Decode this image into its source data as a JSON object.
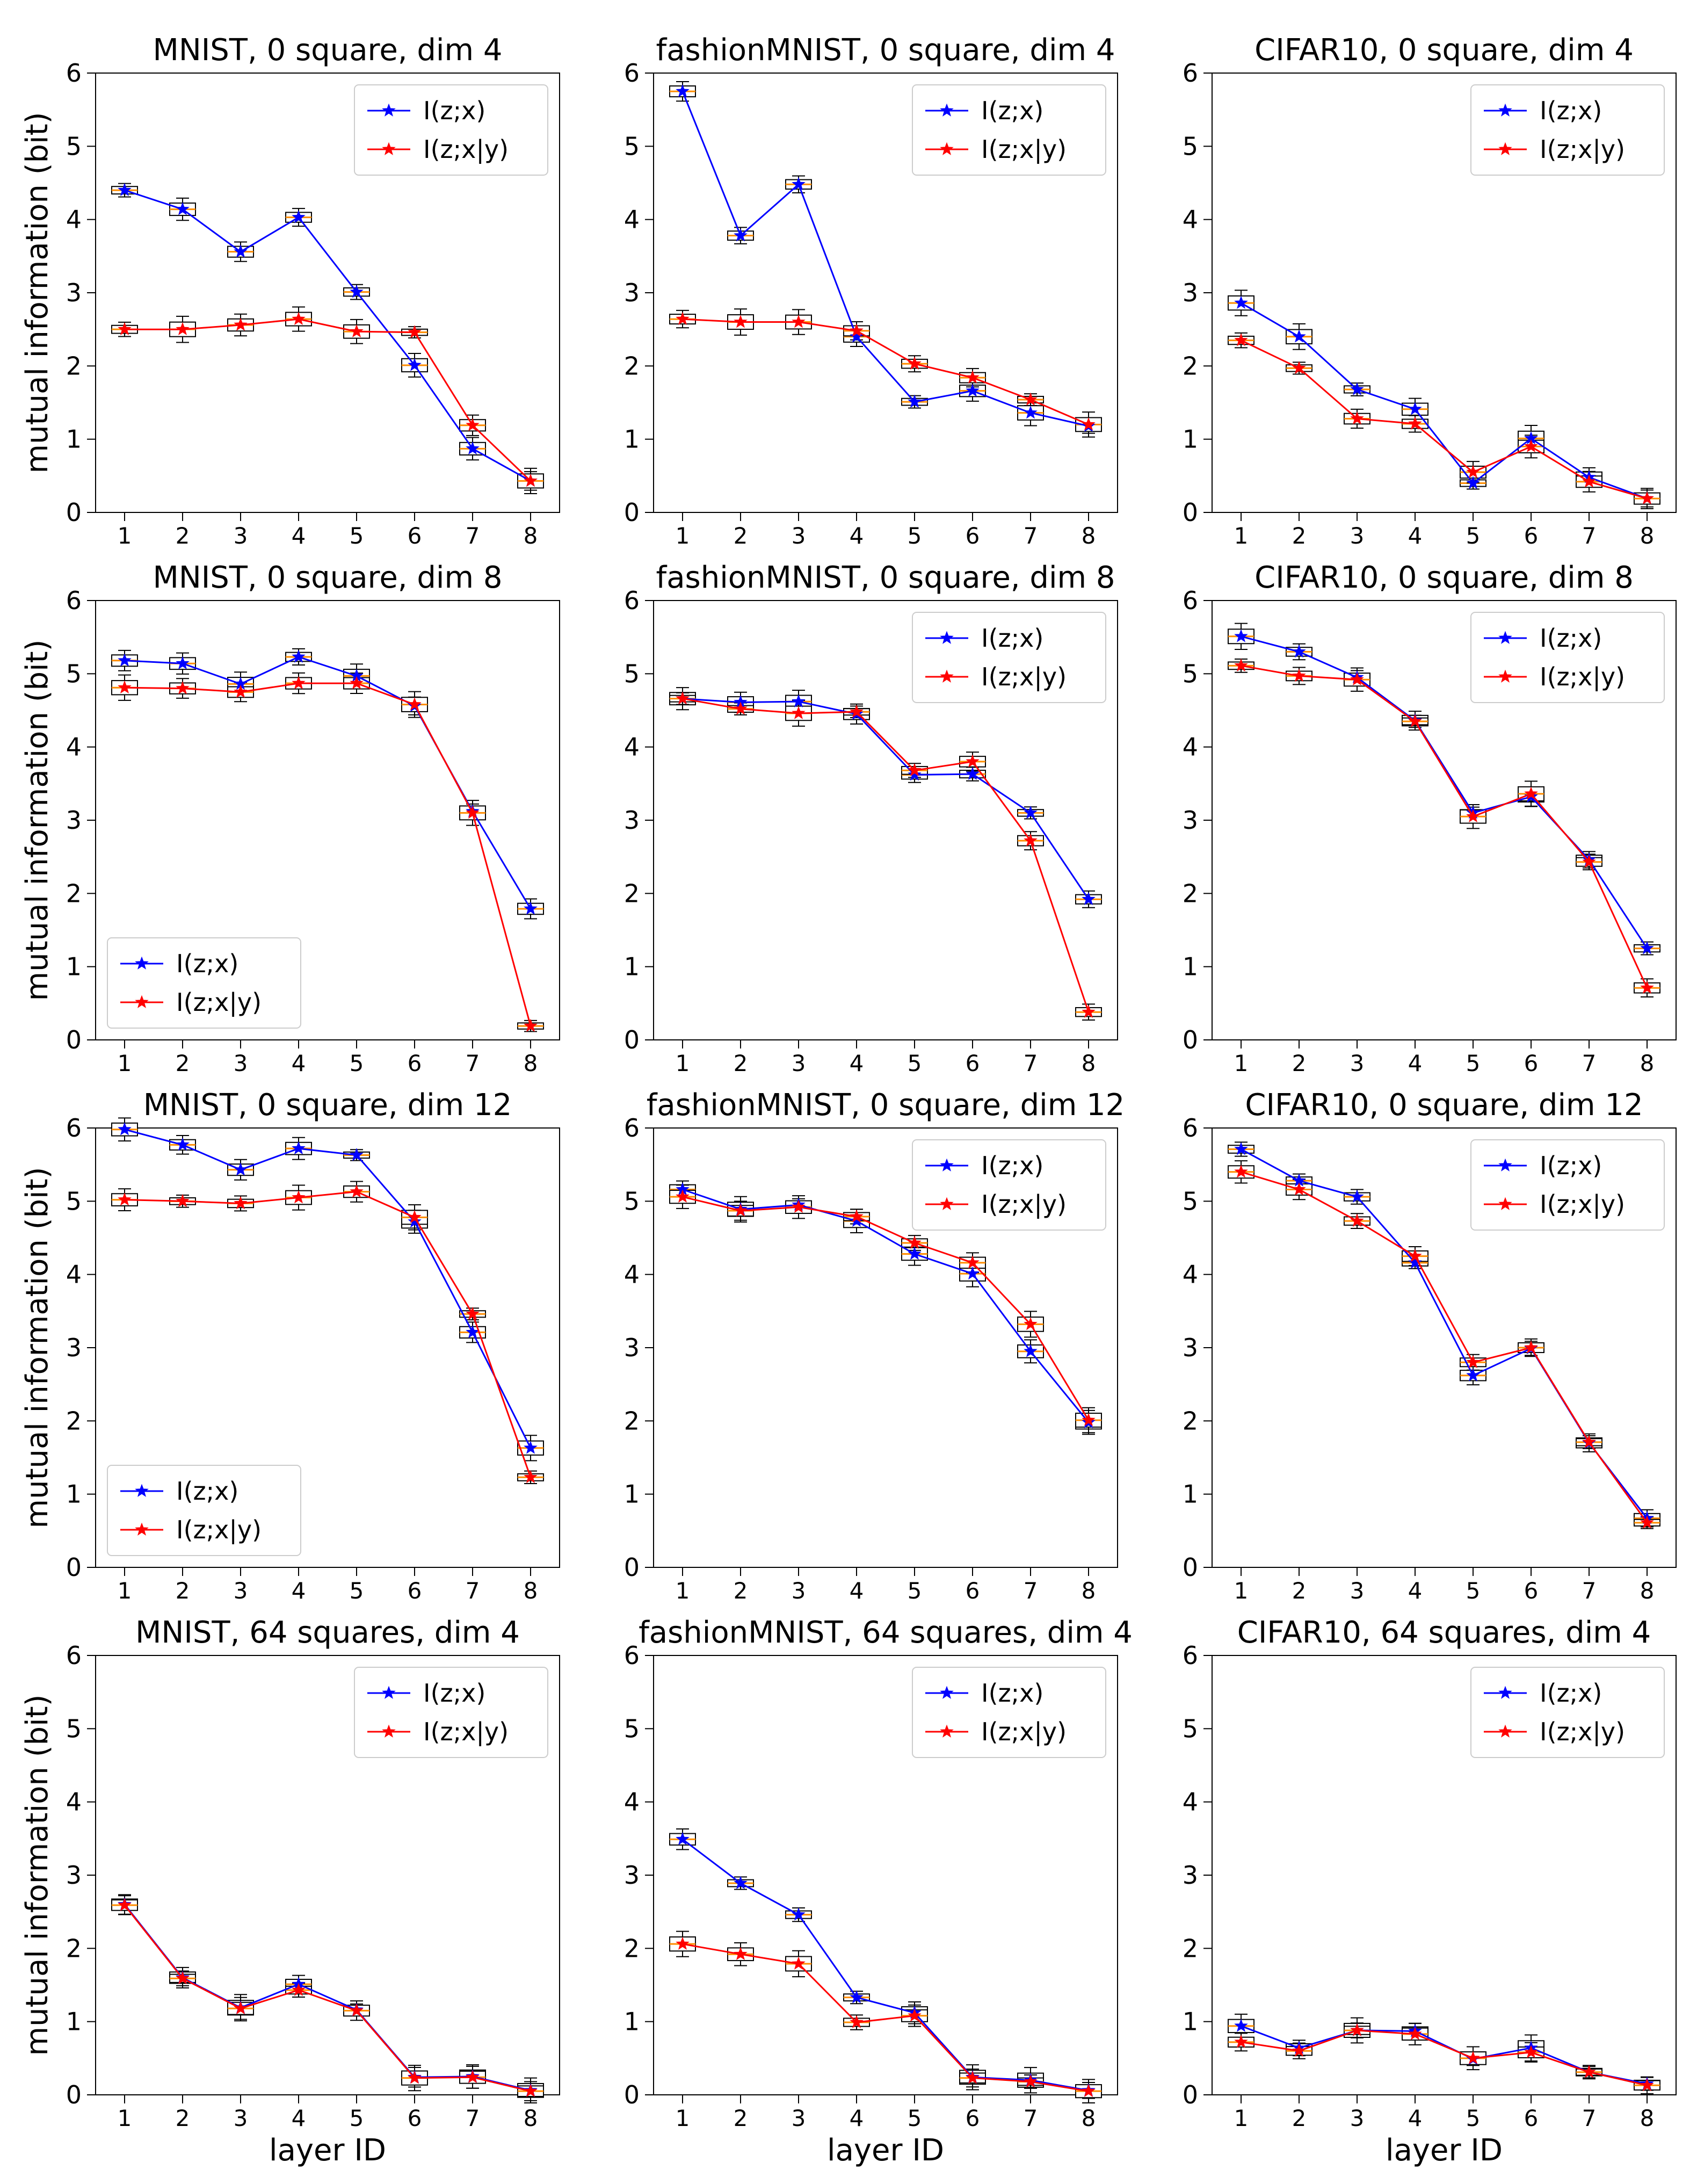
{
  "figure": {
    "ylabel": "mutual information (bit)",
    "xlabel": "layer ID",
    "series_names": [
      "I(z;x)",
      "I(z;x|y)"
    ],
    "series_colors": [
      "#0000ff",
      "#ff0000"
    ]
  },
  "chart_data": [
    {
      "type": "line",
      "title": "MNIST, 0 square, dim 4",
      "legend": "top-right",
      "categories": [
        "1",
        "2",
        "3",
        "4",
        "5",
        "6",
        "7",
        "8"
      ],
      "ylim": [
        0,
        6
      ],
      "yticks": [
        0,
        1,
        2,
        3,
        4,
        5,
        6
      ],
      "series": [
        {
          "name": "I(z;x)",
          "values": [
            4.4,
            4.14,
            3.56,
            4.03,
            3.01,
            2.01,
            0.87,
            0.43
          ]
        },
        {
          "name": "I(z;x|y)",
          "values": [
            2.5,
            2.5,
            2.56,
            2.64,
            2.47,
            2.46,
            1.19,
            0.43
          ]
        }
      ]
    },
    {
      "type": "line",
      "title": "fashionMNIST, 0 square, dim 4",
      "legend": "top-right",
      "categories": [
        "1",
        "2",
        "3",
        "4",
        "5",
        "6",
        "7",
        "8"
      ],
      "ylim": [
        0,
        6
      ],
      "yticks": [
        0,
        1,
        2,
        3,
        4,
        5,
        6
      ],
      "series": [
        {
          "name": "I(z;x)",
          "values": [
            5.75,
            3.78,
            4.48,
            2.4,
            1.51,
            1.66,
            1.36,
            1.18
          ]
        },
        {
          "name": "I(z;x|y)",
          "values": [
            2.64,
            2.6,
            2.6,
            2.48,
            2.03,
            1.84,
            1.54,
            1.2
          ]
        }
      ]
    },
    {
      "type": "line",
      "title": "CIFAR10, 0 square, dim 4",
      "legend": "top-right",
      "categories": [
        "1",
        "2",
        "3",
        "4",
        "5",
        "6",
        "7",
        "8"
      ],
      "ylim": [
        0,
        6
      ],
      "yticks": [
        0,
        1,
        2,
        3,
        4,
        5,
        6
      ],
      "series": [
        {
          "name": "I(z;x)",
          "values": [
            2.86,
            2.4,
            1.68,
            1.41,
            0.4,
            1.01,
            0.48,
            0.19
          ]
        },
        {
          "name": "I(z;x|y)",
          "values": [
            2.35,
            1.97,
            1.28,
            1.21,
            0.55,
            0.9,
            0.42,
            0.19
          ]
        }
      ]
    },
    {
      "type": "line",
      "title": "MNIST, 0 square, dim 8",
      "legend": "bottom-left",
      "categories": [
        "1",
        "2",
        "3",
        "4",
        "5",
        "6",
        "7",
        "8"
      ],
      "ylim": [
        0,
        6
      ],
      "yticks": [
        0,
        1,
        2,
        3,
        4,
        5,
        6
      ],
      "series": [
        {
          "name": "I(z;x)",
          "values": [
            5.18,
            5.14,
            4.86,
            5.23,
            4.97,
            4.56,
            3.12,
            1.79
          ]
        },
        {
          "name": "I(z;x|y)",
          "values": [
            4.81,
            4.8,
            4.75,
            4.87,
            4.87,
            4.58,
            3.1,
            0.19
          ]
        }
      ]
    },
    {
      "type": "line",
      "title": "fashionMNIST, 0 square, dim 8",
      "legend": "top-right",
      "categories": [
        "1",
        "2",
        "3",
        "4",
        "5",
        "6",
        "7",
        "8"
      ],
      "ylim": [
        0,
        6
      ],
      "yticks": [
        0,
        1,
        2,
        3,
        4,
        5,
        6
      ],
      "series": [
        {
          "name": "I(z;x)",
          "values": [
            4.66,
            4.61,
            4.62,
            4.45,
            3.62,
            3.63,
            3.1,
            1.92
          ]
        },
        {
          "name": "I(z;x|y)",
          "values": [
            4.66,
            4.52,
            4.46,
            4.48,
            3.68,
            3.8,
            2.72,
            0.38
          ]
        }
      ]
    },
    {
      "type": "line",
      "title": "CIFAR10, 0 square, dim 8",
      "legend": "top-right",
      "categories": [
        "1",
        "2",
        "3",
        "4",
        "5",
        "6",
        "7",
        "8"
      ],
      "ylim": [
        0,
        6
      ],
      "yticks": [
        0,
        1,
        2,
        3,
        4,
        5,
        6
      ],
      "series": [
        {
          "name": "I(z;x)",
          "values": [
            5.51,
            5.3,
            4.95,
            4.36,
            3.1,
            3.32,
            2.46,
            1.25
          ]
        },
        {
          "name": "I(z;x|y)",
          "values": [
            5.11,
            4.97,
            4.92,
            4.35,
            3.05,
            3.36,
            2.43,
            0.71
          ]
        }
      ]
    },
    {
      "type": "line",
      "title": "MNIST, 0 square, dim 12",
      "legend": "bottom-left",
      "categories": [
        "1",
        "2",
        "3",
        "4",
        "5",
        "6",
        "7",
        "8"
      ],
      "ylim": [
        0,
        6
      ],
      "yticks": [
        0,
        1,
        2,
        3,
        4,
        5,
        6
      ],
      "series": [
        {
          "name": "I(z;x)",
          "values": [
            5.98,
            5.77,
            5.43,
            5.72,
            5.63,
            4.72,
            3.21,
            1.63
          ]
        },
        {
          "name": "I(z;x|y)",
          "values": [
            5.02,
            5.0,
            4.97,
            5.05,
            5.13,
            4.78,
            3.46,
            1.23
          ]
        }
      ]
    },
    {
      "type": "line",
      "title": "fashionMNIST, 0 square, dim 12",
      "legend": "top-right",
      "categories": [
        "1",
        "2",
        "3",
        "4",
        "5",
        "6",
        "7",
        "8"
      ],
      "ylim": [
        0,
        6
      ],
      "yticks": [
        0,
        1,
        2,
        3,
        4,
        5,
        6
      ],
      "series": [
        {
          "name": "I(z;x)",
          "values": [
            5.16,
            4.89,
            4.95,
            4.73,
            4.28,
            4.01,
            2.95,
            1.98
          ]
        },
        {
          "name": "I(z;x|y)",
          "values": [
            5.06,
            4.87,
            4.92,
            4.79,
            4.43,
            4.16,
            3.32,
            2.01
          ]
        }
      ]
    },
    {
      "type": "line",
      "title": "CIFAR10, 0 square, dim 12",
      "legend": "top-right",
      "categories": [
        "1",
        "2",
        "3",
        "4",
        "5",
        "6",
        "7",
        "8"
      ],
      "ylim": [
        0,
        6
      ],
      "yticks": [
        0,
        1,
        2,
        3,
        4,
        5,
        6
      ],
      "series": [
        {
          "name": "I(z;x)",
          "values": [
            5.71,
            5.28,
            5.06,
            4.16,
            2.62,
            2.99,
            1.7,
            0.67
          ]
        },
        {
          "name": "I(z;x|y)",
          "values": [
            5.4,
            5.16,
            4.73,
            4.25,
            2.8,
            3.0,
            1.71,
            0.61
          ]
        }
      ]
    },
    {
      "type": "line",
      "title": "MNIST, 64 squares, dim 4",
      "legend": "top-right",
      "categories": [
        "1",
        "2",
        "3",
        "4",
        "5",
        "6",
        "7",
        "8"
      ],
      "ylim": [
        0,
        6
      ],
      "yticks": [
        0,
        1,
        2,
        3,
        4,
        5,
        6
      ],
      "series": [
        {
          "name": "I(z;x)",
          "values": [
            2.6,
            1.6,
            1.19,
            1.51,
            1.16,
            0.24,
            0.25,
            0.06
          ]
        },
        {
          "name": "I(z;x|y)",
          "values": [
            2.59,
            1.59,
            1.18,
            1.43,
            1.15,
            0.23,
            0.24,
            0.05
          ]
        }
      ]
    },
    {
      "type": "line",
      "title": "fashionMNIST, 64 squares, dim 4",
      "legend": "top-right",
      "categories": [
        "1",
        "2",
        "3",
        "4",
        "5",
        "6",
        "7",
        "8"
      ],
      "ylim": [
        0,
        6
      ],
      "yticks": [
        0,
        1,
        2,
        3,
        4,
        5,
        6
      ],
      "series": [
        {
          "name": "I(z;x)",
          "values": [
            3.49,
            2.89,
            2.46,
            1.33,
            1.12,
            0.24,
            0.2,
            0.06
          ]
        },
        {
          "name": "I(z;x|y)",
          "values": [
            2.06,
            1.92,
            1.79,
            0.99,
            1.08,
            0.23,
            0.18,
            0.05
          ]
        }
      ]
    },
    {
      "type": "line",
      "title": "CIFAR10, 64 squares, dim 4",
      "legend": "top-right",
      "categories": [
        "1",
        "2",
        "3",
        "4",
        "5",
        "6",
        "7",
        "8"
      ],
      "ylim": [
        0,
        6
      ],
      "yticks": [
        0,
        1,
        2,
        3,
        4,
        5,
        6
      ],
      "series": [
        {
          "name": "I(z;x)",
          "values": [
            0.94,
            0.64,
            0.88,
            0.87,
            0.49,
            0.64,
            0.31,
            0.15
          ]
        },
        {
          "name": "I(z;x|y)",
          "values": [
            0.72,
            0.6,
            0.88,
            0.83,
            0.5,
            0.58,
            0.31,
            0.13
          ]
        }
      ]
    }
  ]
}
